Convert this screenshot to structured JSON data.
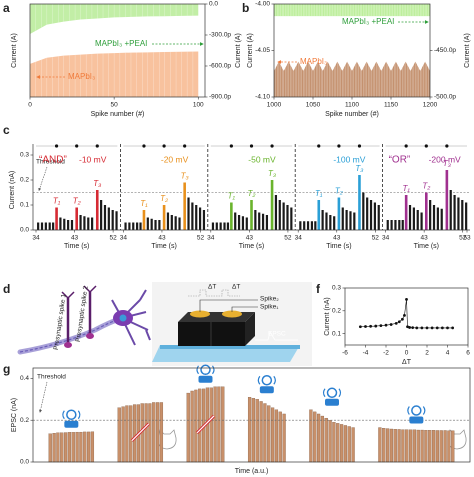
{
  "panel_labels": [
    "a",
    "b",
    "c",
    "d",
    "e",
    "f",
    "g"
  ],
  "illustrations": {
    "d": [
      "Presynaptic spike 1",
      "Presynaptic spike 2"
    ],
    "e": [
      "ΔT",
      "ΔT",
      "Spike₂",
      "Spike₁",
      "EPSC"
    ]
  },
  "chart_data": [
    {
      "type": "area",
      "xlabel": "Spike number (#)",
      "ylabel": "Current (A)",
      "y2label": "Current (A)",
      "xlim": [
        0,
        104
      ],
      "xticks": [
        0,
        50,
        100
      ],
      "y2lim": [
        -900,
        0
      ],
      "y2ticks": [
        {
          "value": 0,
          "label": "0.0"
        },
        {
          "value": -300,
          "label": "-300.0p"
        },
        {
          "value": -600,
          "label": "-600.0p"
        },
        {
          "value": -900,
          "label": "-900.0p"
        }
      ],
      "x": [
        0,
        10,
        20,
        30,
        40,
        50,
        60,
        70,
        80,
        90,
        100
      ],
      "series": [
        {
          "name": "MAPbI₃ +PEAI",
          "color": "#c2eea6",
          "axis": "y2",
          "values": [
            -290,
            -200,
            -170,
            -150,
            -140,
            -130,
            -125,
            -120,
            -118,
            -115,
            -112
          ]
        },
        {
          "name": "MAPbI₃",
          "color": "#f8c29e",
          "axis": "y2",
          "values": [
            -580,
            -520,
            -500,
            -490,
            -480,
            -475,
            -470,
            -468,
            -465,
            -462,
            -460
          ]
        }
      ]
    },
    {
      "type": "area",
      "xlabel": "Spike number (#)",
      "ylabel": "Current (A)",
      "y2label": "Current (A)",
      "xlim": [
        1000,
        1200
      ],
      "xticks": [
        1000,
        1050,
        1100,
        1150,
        1200
      ],
      "ylim": [
        -4.1,
        -4.0
      ],
      "yticks": [
        {
          "value": -4.0,
          "label": "-4.00"
        },
        {
          "value": -4.05,
          "label": "-4.05"
        },
        {
          "value": -4.1,
          "label": "-4.10"
        }
      ],
      "y2lim": [
        -500,
        -400
      ],
      "y2ticks": [
        {
          "value": -450,
          "label": "-450.0p"
        },
        {
          "value": -500,
          "label": "-500.0p"
        }
      ],
      "x": [
        1000,
        1006.25,
        1012.5,
        1018.75,
        1025,
        1031.25,
        1037.5,
        1043.75,
        1050,
        1056.25,
        1062.5,
        1068.75,
        1075,
        1081.25,
        1087.5,
        1093.75,
        1100,
        1106.25,
        1112.5,
        1118.75,
        1125,
        1131.25,
        1137.5,
        1143.75,
        1150,
        1156.25,
        1162.5,
        1168.75,
        1175,
        1181.25,
        1187.5,
        1193.75,
        1200
      ],
      "series": [
        {
          "name": "MAPbI₃ +PEAI",
          "color": "#bdee9c",
          "axis": "y2",
          "values": [
            -413,
            -413,
            -413,
            -413,
            -413,
            -413,
            -413,
            -413,
            -413,
            -413,
            -413,
            -413,
            -413,
            -413,
            -413,
            -413,
            -413,
            -413,
            -413,
            -413,
            -413,
            -413,
            -413,
            -413,
            -413,
            -413,
            -413,
            -413,
            -413,
            -413,
            -413,
            -413,
            -413
          ]
        },
        {
          "name": "MAPbI₃",
          "color": "#c4916f",
          "axis": "y",
          "values": [
            -4.072,
            -4.062,
            -4.072,
            -4.062,
            -4.072,
            -4.062,
            -4.072,
            -4.062,
            -4.072,
            -4.062,
            -4.072,
            -4.062,
            -4.072,
            -4.062,
            -4.072,
            -4.062,
            -4.072,
            -4.062,
            -4.072,
            -4.062,
            -4.072,
            -4.062,
            -4.072,
            -4.062,
            -4.072,
            -4.062,
            -4.072,
            -4.062,
            -4.072,
            -4.062,
            -4.072,
            -4.062,
            -4.072
          ]
        }
      ]
    },
    {
      "type": "bar",
      "xlabel": "Time (s)",
      "ylabel": "Current (nA)",
      "ylim": [
        0,
        0.32
      ],
      "yticks": [
        {
          "value": 0,
          "label": "0.0"
        },
        0.1,
        0.2,
        0.3
      ],
      "threshold": {
        "label": "Threshold",
        "value": 0.15
      },
      "xlim": [
        34,
        53
      ],
      "x": [
        34.5,
        35.4,
        36.3,
        37.2,
        38.0,
        39.7,
        40.6,
        41.5,
        42.4,
        44.4,
        45.3,
        46.2,
        47.1,
        49.2,
        50.1,
        51.0,
        51.9,
        52.8
      ],
      "panels": [
        {
          "gate": "“AND”",
          "title": "-10 mV",
          "color": "#d62a33",
          "xticks": [
            34,
            43,
            52
          ],
          "values": [
            0.03,
            0.03,
            0.03,
            0.03,
            0.03,
            0.05,
            0.045,
            0.04,
            0.04,
            0.06,
            0.055,
            0.05,
            0.05,
            0.12,
            0.1,
            0.09,
            0.08,
            0.075
          ],
          "spikes": [
            {
              "label": "T₁",
              "x": 38.8,
              "value": 0.09
            },
            {
              "label": "T₂",
              "x": 43.5,
              "value": 0.09
            },
            {
              "label": "T₃",
              "x": 48.3,
              "value": 0.16
            }
          ]
        },
        {
          "title": "-20 mV",
          "color": "#e8901c",
          "xticks": [
            34,
            43,
            52
          ],
          "values": [
            0.03,
            0.03,
            0.03,
            0.03,
            0.03,
            0.05,
            0.045,
            0.04,
            0.04,
            0.07,
            0.06,
            0.055,
            0.05,
            0.13,
            0.11,
            0.1,
            0.09,
            0.08
          ],
          "spikes": [
            {
              "label": "T₁",
              "x": 38.8,
              "value": 0.08
            },
            {
              "label": "T₂",
              "x": 43.5,
              "value": 0.1
            },
            {
              "label": "T₃",
              "x": 48.3,
              "value": 0.19
            }
          ]
        },
        {
          "title": "-50 mV",
          "color": "#6ab42d",
          "xticks": [
            34,
            43,
            52
          ],
          "values": [
            0.03,
            0.03,
            0.03,
            0.03,
            0.03,
            0.07,
            0.06,
            0.055,
            0.05,
            0.08,
            0.07,
            0.065,
            0.06,
            0.14,
            0.12,
            0.11,
            0.1,
            0.09
          ],
          "spikes": [
            {
              "label": "T₁",
              "x": 38.8,
              "value": 0.11
            },
            {
              "label": "T₂",
              "x": 43.5,
              "value": 0.12
            },
            {
              "label": "T₃",
              "x": 48.3,
              "value": 0.2
            }
          ]
        },
        {
          "title": "-100 mV",
          "color": "#2a9fd6",
          "xticks": [
            34,
            43,
            52
          ],
          "values": [
            0.035,
            0.035,
            0.035,
            0.035,
            0.035,
            0.08,
            0.07,
            0.06,
            0.055,
            0.09,
            0.08,
            0.075,
            0.07,
            0.15,
            0.13,
            0.12,
            0.11,
            0.1
          ],
          "spikes": [
            {
              "label": "T₁",
              "x": 38.8,
              "value": 0.12
            },
            {
              "label": "T₂",
              "x": 43.5,
              "value": 0.13
            },
            {
              "label": "T₃",
              "x": 48.3,
              "value": 0.22
            }
          ]
        },
        {
          "gate": "“OR”",
          "title": "-200 mV",
          "color": "#a0308f",
          "xticks": [
            34,
            43,
            52,
            53
          ],
          "values": [
            0.04,
            0.04,
            0.04,
            0.04,
            0.04,
            0.1,
            0.09,
            0.08,
            0.07,
            0.12,
            0.1,
            0.09,
            0.085,
            0.16,
            0.14,
            0.13,
            0.12,
            0.11
          ],
          "spikes": [
            {
              "label": "T₁",
              "x": 38.8,
              "value": 0.14
            },
            {
              "label": "T₂",
              "x": 43.5,
              "value": 0.15
            },
            {
              "label": "T₃",
              "x": 48.3,
              "value": 0.24
            }
          ]
        }
      ]
    },
    {
      "type": "scatter",
      "xlabel": "ΔT",
      "ylabel": "Current (nA)",
      "xlim": [
        -6,
        6
      ],
      "xticks": [
        -6,
        -4,
        -2,
        0,
        2,
        4,
        6
      ],
      "ylim": [
        0.05,
        0.3
      ],
      "yticks": [
        0.1,
        0.2,
        0.3
      ],
      "color": "#111",
      "x": [
        -4.5,
        -4,
        -3.5,
        -3,
        -2.5,
        -2,
        -1.5,
        -1,
        -0.7,
        -0.4,
        -0.2,
        0,
        0.1,
        0.3,
        0.6,
        1,
        1.5,
        2,
        2.5,
        3,
        3.5,
        4,
        4.5
      ],
      "values": [
        0.13,
        0.131,
        0.132,
        0.133,
        0.135,
        0.137,
        0.14,
        0.145,
        0.152,
        0.163,
        0.18,
        0.25,
        0.13,
        0.127,
        0.126,
        0.125,
        0.125,
        0.125,
        0.125,
        0.125,
        0.125,
        0.125,
        0.125
      ]
    },
    {
      "type": "bar",
      "xlabel": "Time (a.u.)",
      "ylabel": "EPSC (nA)",
      "color": "#c8906a",
      "ylim": [
        0,
        0.45
      ],
      "yticks": [
        {
          "value": 0,
          "label": "0.0"
        },
        0.2,
        0.4
      ],
      "threshold": {
        "label": "Threshold",
        "value": 0.2
      },
      "groups": [
        [
          0.135,
          0.138,
          0.14,
          0.14,
          0.141,
          0.142,
          0.142,
          0.143,
          0.143,
          0.144,
          0.144,
          0.145
        ],
        [
          0.26,
          0.265,
          0.27,
          0.27,
          0.275,
          0.275,
          0.28,
          0.28,
          0.28,
          0.285,
          0.285,
          0.285
        ],
        [
          0.33,
          0.34,
          0.345,
          0.35,
          0.35,
          0.355,
          0.355,
          0.36,
          0.36,
          0.36
        ],
        [
          0.31,
          0.305,
          0.3,
          0.29,
          0.28,
          0.27,
          0.26,
          0.25,
          0.24,
          0.23
        ],
        [
          0.25,
          0.24,
          0.23,
          0.22,
          0.21,
          0.2,
          0.19,
          0.185,
          0.18,
          0.175,
          0.17,
          0.165
        ],
        [
          0.165,
          0.162,
          0.16,
          0.158,
          0.157,
          0.156,
          0.155,
          0.155,
          0.154,
          0.154,
          0.153,
          0.153,
          0.152,
          0.152,
          0.152,
          0.151,
          0.151,
          0.151,
          0.15,
          0.15
        ]
      ]
    }
  ]
}
